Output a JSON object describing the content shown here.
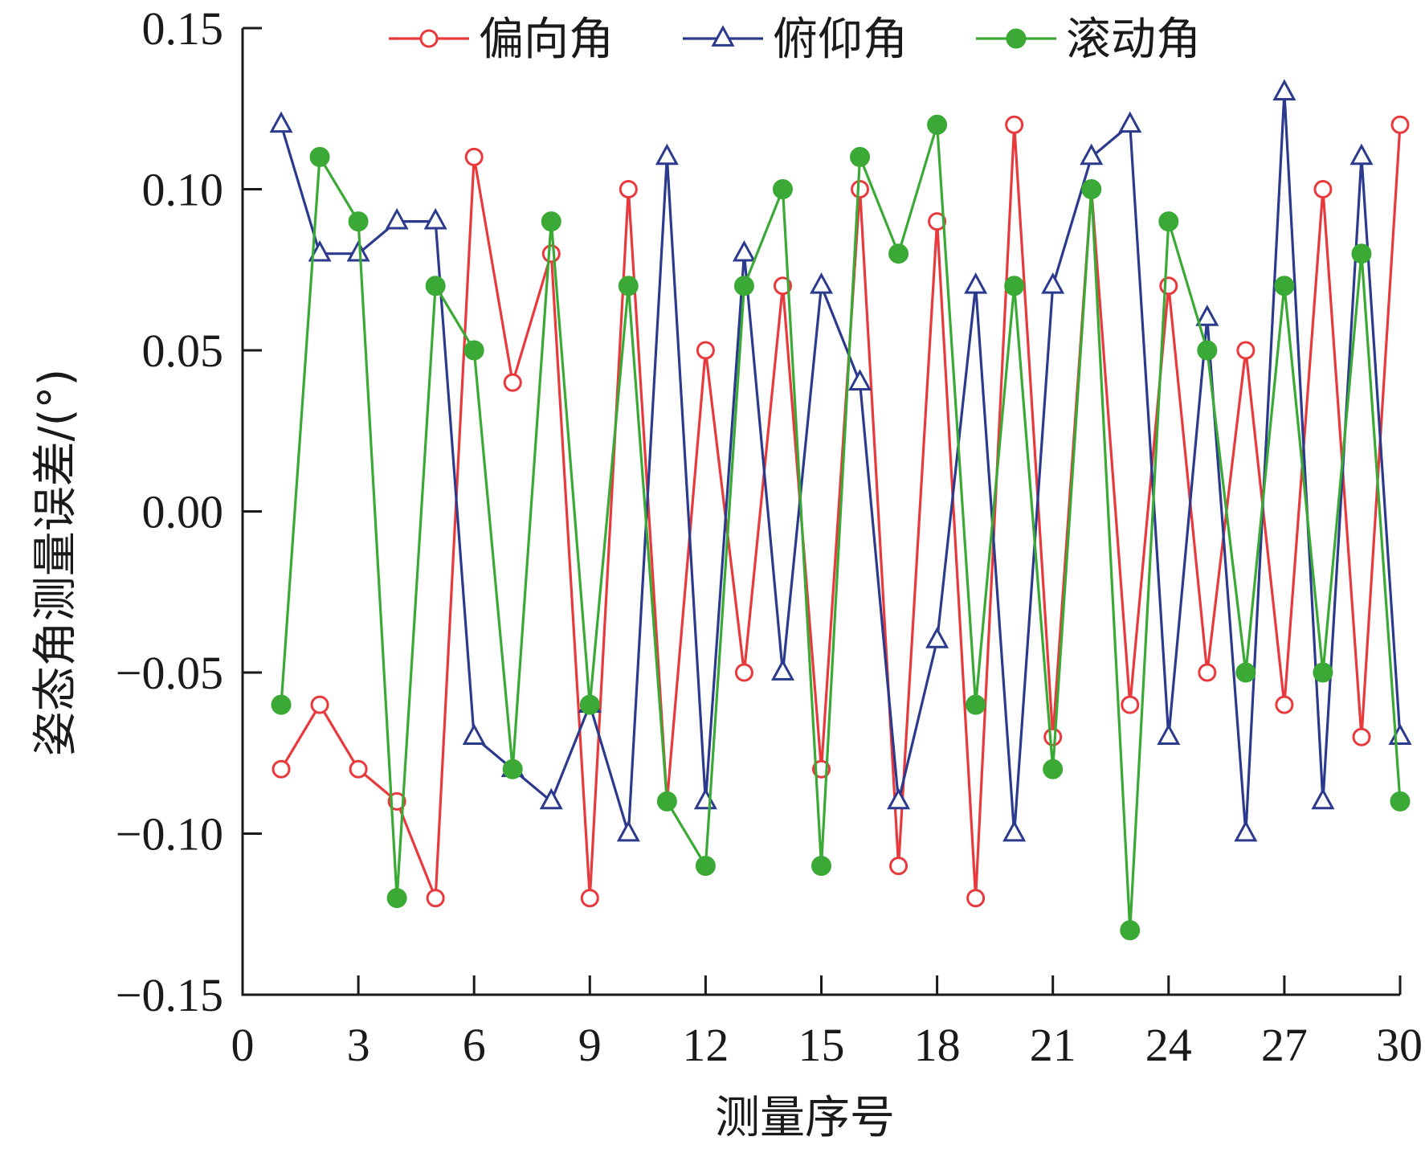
{
  "chart_data": {
    "type": "line",
    "xlabel": "测量序号",
    "ylabel": "姿态角测量误差/(°)",
    "xlim": [
      0,
      30
    ],
    "ylim": [
      -0.15,
      0.15
    ],
    "xticks": [
      0,
      3,
      6,
      9,
      12,
      15,
      18,
      21,
      24,
      27,
      30
    ],
    "xtick_labels": [
      "0",
      "3",
      "6",
      "9",
      "12",
      "15",
      "18",
      "21",
      "24",
      "27",
      "30"
    ],
    "yticks": [
      0.15,
      0.1,
      0.05,
      0.0,
      -0.05,
      -0.1,
      -0.15
    ],
    "ytick_labels": [
      "0.15",
      "0.10",
      "0.05",
      "0.00",
      "−0.05",
      "−0.10",
      "−0.15"
    ],
    "grid": false,
    "legend_position": "top",
    "x": [
      1,
      2,
      3,
      4,
      5,
      6,
      7,
      8,
      9,
      10,
      11,
      12,
      13,
      14,
      15,
      16,
      17,
      18,
      19,
      20,
      21,
      22,
      23,
      24,
      25,
      26,
      27,
      28,
      29,
      30
    ],
    "series": [
      {
        "name": "偏向角",
        "color": "#e8393d",
        "marker": "open-circle",
        "values": [
          -0.08,
          -0.06,
          -0.08,
          -0.09,
          -0.12,
          0.11,
          0.04,
          0.08,
          -0.12,
          0.1,
          -0.09,
          0.05,
          -0.05,
          0.07,
          -0.08,
          0.1,
          -0.11,
          0.09,
          -0.12,
          0.12,
          -0.07,
          0.1,
          -0.06,
          0.07,
          -0.05,
          0.05,
          -0.06,
          0.1,
          -0.07,
          0.12
        ]
      },
      {
        "name": "俯仰角",
        "color": "#2b3a8c",
        "marker": "open-triangle",
        "values": [
          0.12,
          0.08,
          0.08,
          0.09,
          0.09,
          -0.07,
          -0.08,
          -0.09,
          -0.06,
          -0.1,
          0.11,
          -0.09,
          0.08,
          -0.05,
          0.07,
          0.04,
          -0.09,
          -0.04,
          0.07,
          -0.1,
          0.07,
          0.11,
          0.12,
          -0.07,
          0.06,
          -0.1,
          0.13,
          -0.09,
          0.11,
          -0.07
        ]
      },
      {
        "name": "滚动角",
        "color": "#3aa935",
        "marker": "filled-circle",
        "values": [
          -0.06,
          0.11,
          0.09,
          -0.12,
          0.07,
          0.05,
          -0.08,
          0.09,
          -0.06,
          0.07,
          -0.09,
          -0.11,
          0.07,
          0.1,
          -0.11,
          0.11,
          0.08,
          0.12,
          -0.06,
          0.07,
          -0.08,
          0.1,
          -0.13,
          0.09,
          0.05,
          -0.05,
          0.07,
          -0.05,
          0.08,
          -0.09
        ]
      }
    ]
  }
}
